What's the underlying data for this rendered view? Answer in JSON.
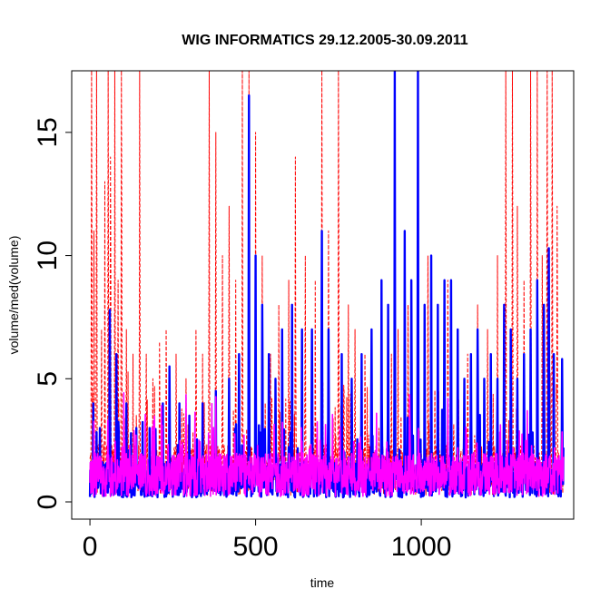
{
  "chart_data": {
    "type": "line",
    "title": "WIG INFORMATICS 29.12.2005-30.09.2011",
    "xlabel": "time",
    "ylabel": "volume/med(volume)",
    "xlim": [
      -55,
      1460
    ],
    "ylim": [
      -0.7,
      17.5
    ],
    "x_ticks": [
      0,
      500,
      1000
    ],
    "y_ticks": [
      0,
      5,
      10,
      15
    ],
    "n_points": 1430,
    "grid": false,
    "series": [
      {
        "line_style": "dashed",
        "color": "#ff0000",
        "baseline": 1.3,
        "spikes": [
          [
            5,
            17.5
          ],
          [
            12,
            11
          ],
          [
            20,
            17.5
          ],
          [
            35,
            7
          ],
          [
            45,
            13
          ],
          [
            55,
            17.5
          ],
          [
            62,
            14
          ],
          [
            75,
            17.5
          ],
          [
            85,
            9
          ],
          [
            95,
            17.5
          ],
          [
            110,
            7
          ],
          [
            130,
            6
          ],
          [
            150,
            17.5
          ],
          [
            170,
            6
          ],
          [
            190,
            5
          ],
          [
            210,
            6.5
          ],
          [
            230,
            7
          ],
          [
            260,
            6
          ],
          [
            290,
            5
          ],
          [
            320,
            7
          ],
          [
            340,
            6
          ],
          [
            360,
            17.5
          ],
          [
            380,
            15
          ],
          [
            400,
            10
          ],
          [
            420,
            12
          ],
          [
            440,
            9
          ],
          [
            460,
            17.5
          ],
          [
            480,
            17.5
          ],
          [
            500,
            15
          ],
          [
            520,
            10
          ],
          [
            545,
            6
          ],
          [
            570,
            8
          ],
          [
            600,
            9
          ],
          [
            620,
            14
          ],
          [
            650,
            10
          ],
          [
            680,
            9
          ],
          [
            700,
            17.5
          ],
          [
            720,
            11
          ],
          [
            750,
            17.5
          ],
          [
            780,
            8
          ],
          [
            800,
            7
          ],
          [
            830,
            6
          ],
          [
            850,
            6
          ],
          [
            880,
            5
          ],
          [
            910,
            6
          ],
          [
            930,
            7
          ],
          [
            960,
            8
          ],
          [
            990,
            7
          ],
          [
            1020,
            10
          ],
          [
            1050,
            8
          ],
          [
            1080,
            9
          ],
          [
            1110,
            7
          ],
          [
            1140,
            6
          ],
          [
            1170,
            8
          ],
          [
            1200,
            7
          ],
          [
            1230,
            10
          ],
          [
            1255,
            17.5
          ],
          [
            1275,
            17.5
          ],
          [
            1290,
            12
          ],
          [
            1310,
            9
          ],
          [
            1330,
            17.5
          ],
          [
            1350,
            17.5
          ],
          [
            1365,
            10
          ],
          [
            1380,
            17.5
          ],
          [
            1395,
            17.5
          ],
          [
            1410,
            12
          ]
        ],
        "values": []
      },
      {
        "line_style": "solid",
        "color": "#0000ff",
        "baseline": 0.9,
        "spikes": [
          [
            10,
            4
          ],
          [
            30,
            3
          ],
          [
            60,
            7.8
          ],
          [
            80,
            6
          ],
          [
            110,
            4
          ],
          [
            140,
            3
          ],
          [
            180,
            3
          ],
          [
            220,
            4
          ],
          [
            240,
            5.5
          ],
          [
            270,
            4
          ],
          [
            300,
            3.5
          ],
          [
            340,
            4
          ],
          [
            380,
            4.5
          ],
          [
            420,
            5
          ],
          [
            450,
            6
          ],
          [
            480,
            16.5
          ],
          [
            500,
            10
          ],
          [
            520,
            8
          ],
          [
            540,
            6
          ],
          [
            560,
            5
          ],
          [
            580,
            7
          ],
          [
            610,
            8
          ],
          [
            640,
            7
          ],
          [
            670,
            7
          ],
          [
            700,
            11
          ],
          [
            720,
            7
          ],
          [
            760,
            6
          ],
          [
            790,
            5
          ],
          [
            820,
            6
          ],
          [
            850,
            7
          ],
          [
            880,
            9
          ],
          [
            900,
            8
          ],
          [
            920,
            17.5
          ],
          [
            950,
            11
          ],
          [
            970,
            9
          ],
          [
            990,
            17.5
          ],
          [
            1010,
            8
          ],
          [
            1030,
            10
          ],
          [
            1050,
            8
          ],
          [
            1070,
            9
          ],
          [
            1090,
            9
          ],
          [
            1110,
            7
          ],
          [
            1130,
            5
          ],
          [
            1150,
            6
          ],
          [
            1170,
            7
          ],
          [
            1190,
            5
          ],
          [
            1210,
            6
          ],
          [
            1230,
            5
          ],
          [
            1250,
            8
          ],
          [
            1270,
            7
          ],
          [
            1290,
            5
          ],
          [
            1310,
            6
          ],
          [
            1330,
            7
          ],
          [
            1350,
            9
          ],
          [
            1370,
            8
          ],
          [
            1385,
            10.3
          ],
          [
            1400,
            6
          ],
          [
            1425,
            5.8
          ]
        ],
        "values": []
      },
      {
        "line_style": "solid",
        "color": "#ff00ff",
        "baseline": 1.1,
        "spikes": [
          [
            370,
            2
          ],
          [
            480,
            1.6
          ],
          [
            700,
            1.7
          ],
          [
            850,
            1.8
          ],
          [
            1080,
            4.2
          ],
          [
            1110,
            2.2
          ],
          [
            1260,
            2.5
          ]
        ],
        "values": []
      }
    ]
  }
}
